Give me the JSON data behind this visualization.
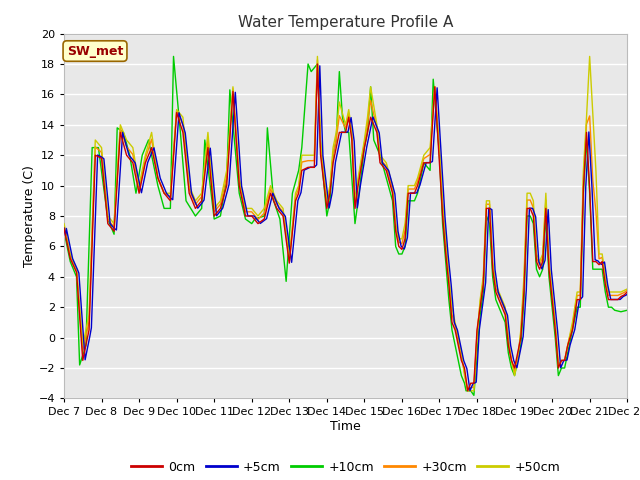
{
  "title": "Water Temperature Profile A",
  "xlabel": "Time",
  "ylabel": "Temperature (C)",
  "ylim": [
    -4,
    20
  ],
  "xlim": [
    0,
    360
  ],
  "x_tick_labels": [
    "Dec 7",
    "Dec 8",
    "Dec 9",
    "Dec 10",
    "Dec 11",
    "Dec 12",
    "Dec 13",
    "Dec 14",
    "Dec 15",
    "Dec 16",
    "Dec 17",
    "Dec 18",
    "Dec 19",
    "Dec 20",
    "Dec 21",
    "Dec 22"
  ],
  "x_tick_positions": [
    0,
    24,
    48,
    72,
    96,
    120,
    144,
    168,
    192,
    216,
    240,
    264,
    288,
    312,
    336,
    360
  ],
  "y_tick_positions": [
    -4,
    -2,
    0,
    2,
    4,
    6,
    8,
    10,
    12,
    14,
    16,
    18,
    20
  ],
  "series_colors": [
    "#cc0000",
    "#0000cc",
    "#00cc00",
    "#ff8800",
    "#cccc00"
  ],
  "series_labels": [
    "0cm",
    "+5cm",
    "+10cm",
    "+30cm",
    "+50cm"
  ],
  "annotation_text": "SW_met",
  "annotation_color": "#990000",
  "annotation_bg": "#ffffcc",
  "annotation_border": "#996600",
  "background_color": "#e8e8e8",
  "title_fontsize": 11,
  "label_fontsize": 9,
  "tick_fontsize": 8,
  "legend_fontsize": 9,
  "line_width": 1.0
}
